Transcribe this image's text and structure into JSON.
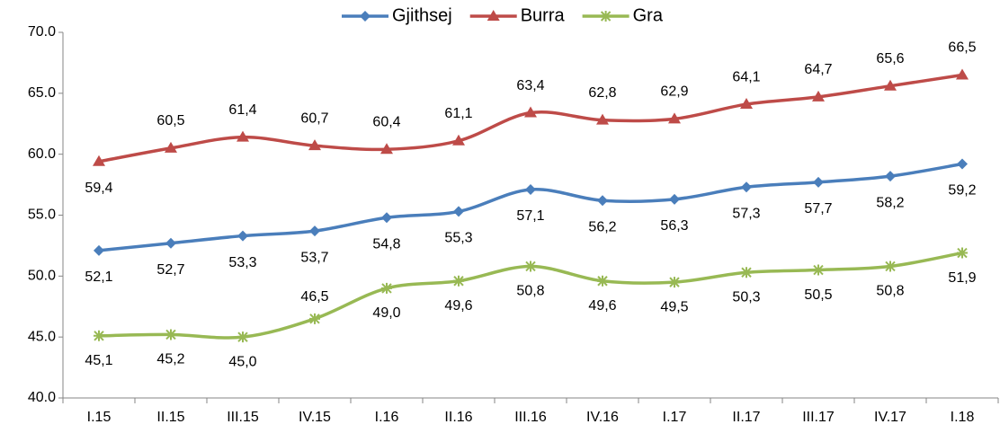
{
  "chart_data": {
    "type": "line",
    "categories": [
      "I.15",
      "II.15",
      "III.15",
      "IV.15",
      "I.16",
      "II.16",
      "III.16",
      "IV.16",
      "I.17",
      "II.17",
      "III.17",
      "IV.17",
      "I.18"
    ],
    "series": [
      {
        "name": "Gjithsej",
        "color": "#4a7ebb",
        "marker": "diamond",
        "values": [
          52.1,
          52.7,
          53.3,
          53.7,
          54.8,
          55.3,
          57.1,
          56.2,
          56.3,
          57.3,
          57.7,
          58.2,
          59.2
        ],
        "value_labels": [
          "52,1",
          "52,7",
          "53,3",
          "53,7",
          "54,8",
          "55,3",
          "57,1",
          "56,2",
          "56,3",
          "57,3",
          "57,7",
          "58,2",
          "59,2"
        ]
      },
      {
        "name": "Burra",
        "color": "#be4b48",
        "marker": "triangle",
        "values": [
          59.4,
          60.5,
          61.4,
          60.7,
          60.4,
          61.1,
          63.4,
          62.8,
          62.9,
          64.1,
          64.7,
          65.6,
          66.5
        ],
        "value_labels": [
          "59,4",
          "60,5",
          "61,4",
          "60,7",
          "60,4",
          "61,1",
          "63,4",
          "62,8",
          "62,9",
          "64,1",
          "64,7",
          "65,6",
          "66,5"
        ]
      },
      {
        "name": "Gra",
        "color": "#98b954",
        "marker": "star",
        "values": [
          45.1,
          45.2,
          45.0,
          46.5,
          49.0,
          49.6,
          50.8,
          49.6,
          49.5,
          50.3,
          50.5,
          50.8,
          51.9
        ],
        "value_labels": [
          "45,1",
          "45,2",
          "45,0",
          "46,5",
          "49,0",
          "49,6",
          "50,8",
          "49,6",
          "49,5",
          "50,3",
          "50,5",
          "50,8",
          "51,9"
        ]
      }
    ],
    "ylim": [
      40,
      70
    ],
    "yticks": [
      {
        "value": 40,
        "label": "40.0"
      },
      {
        "value": 45,
        "label": "45.0"
      },
      {
        "value": 50,
        "label": "50.0"
      },
      {
        "value": 55,
        "label": "55.0"
      },
      {
        "value": 60,
        "label": "60.0"
      },
      {
        "value": 65,
        "label": "65.0"
      },
      {
        "value": 70,
        "label": "70.0"
      }
    ],
    "grid": false,
    "legend": "top"
  }
}
